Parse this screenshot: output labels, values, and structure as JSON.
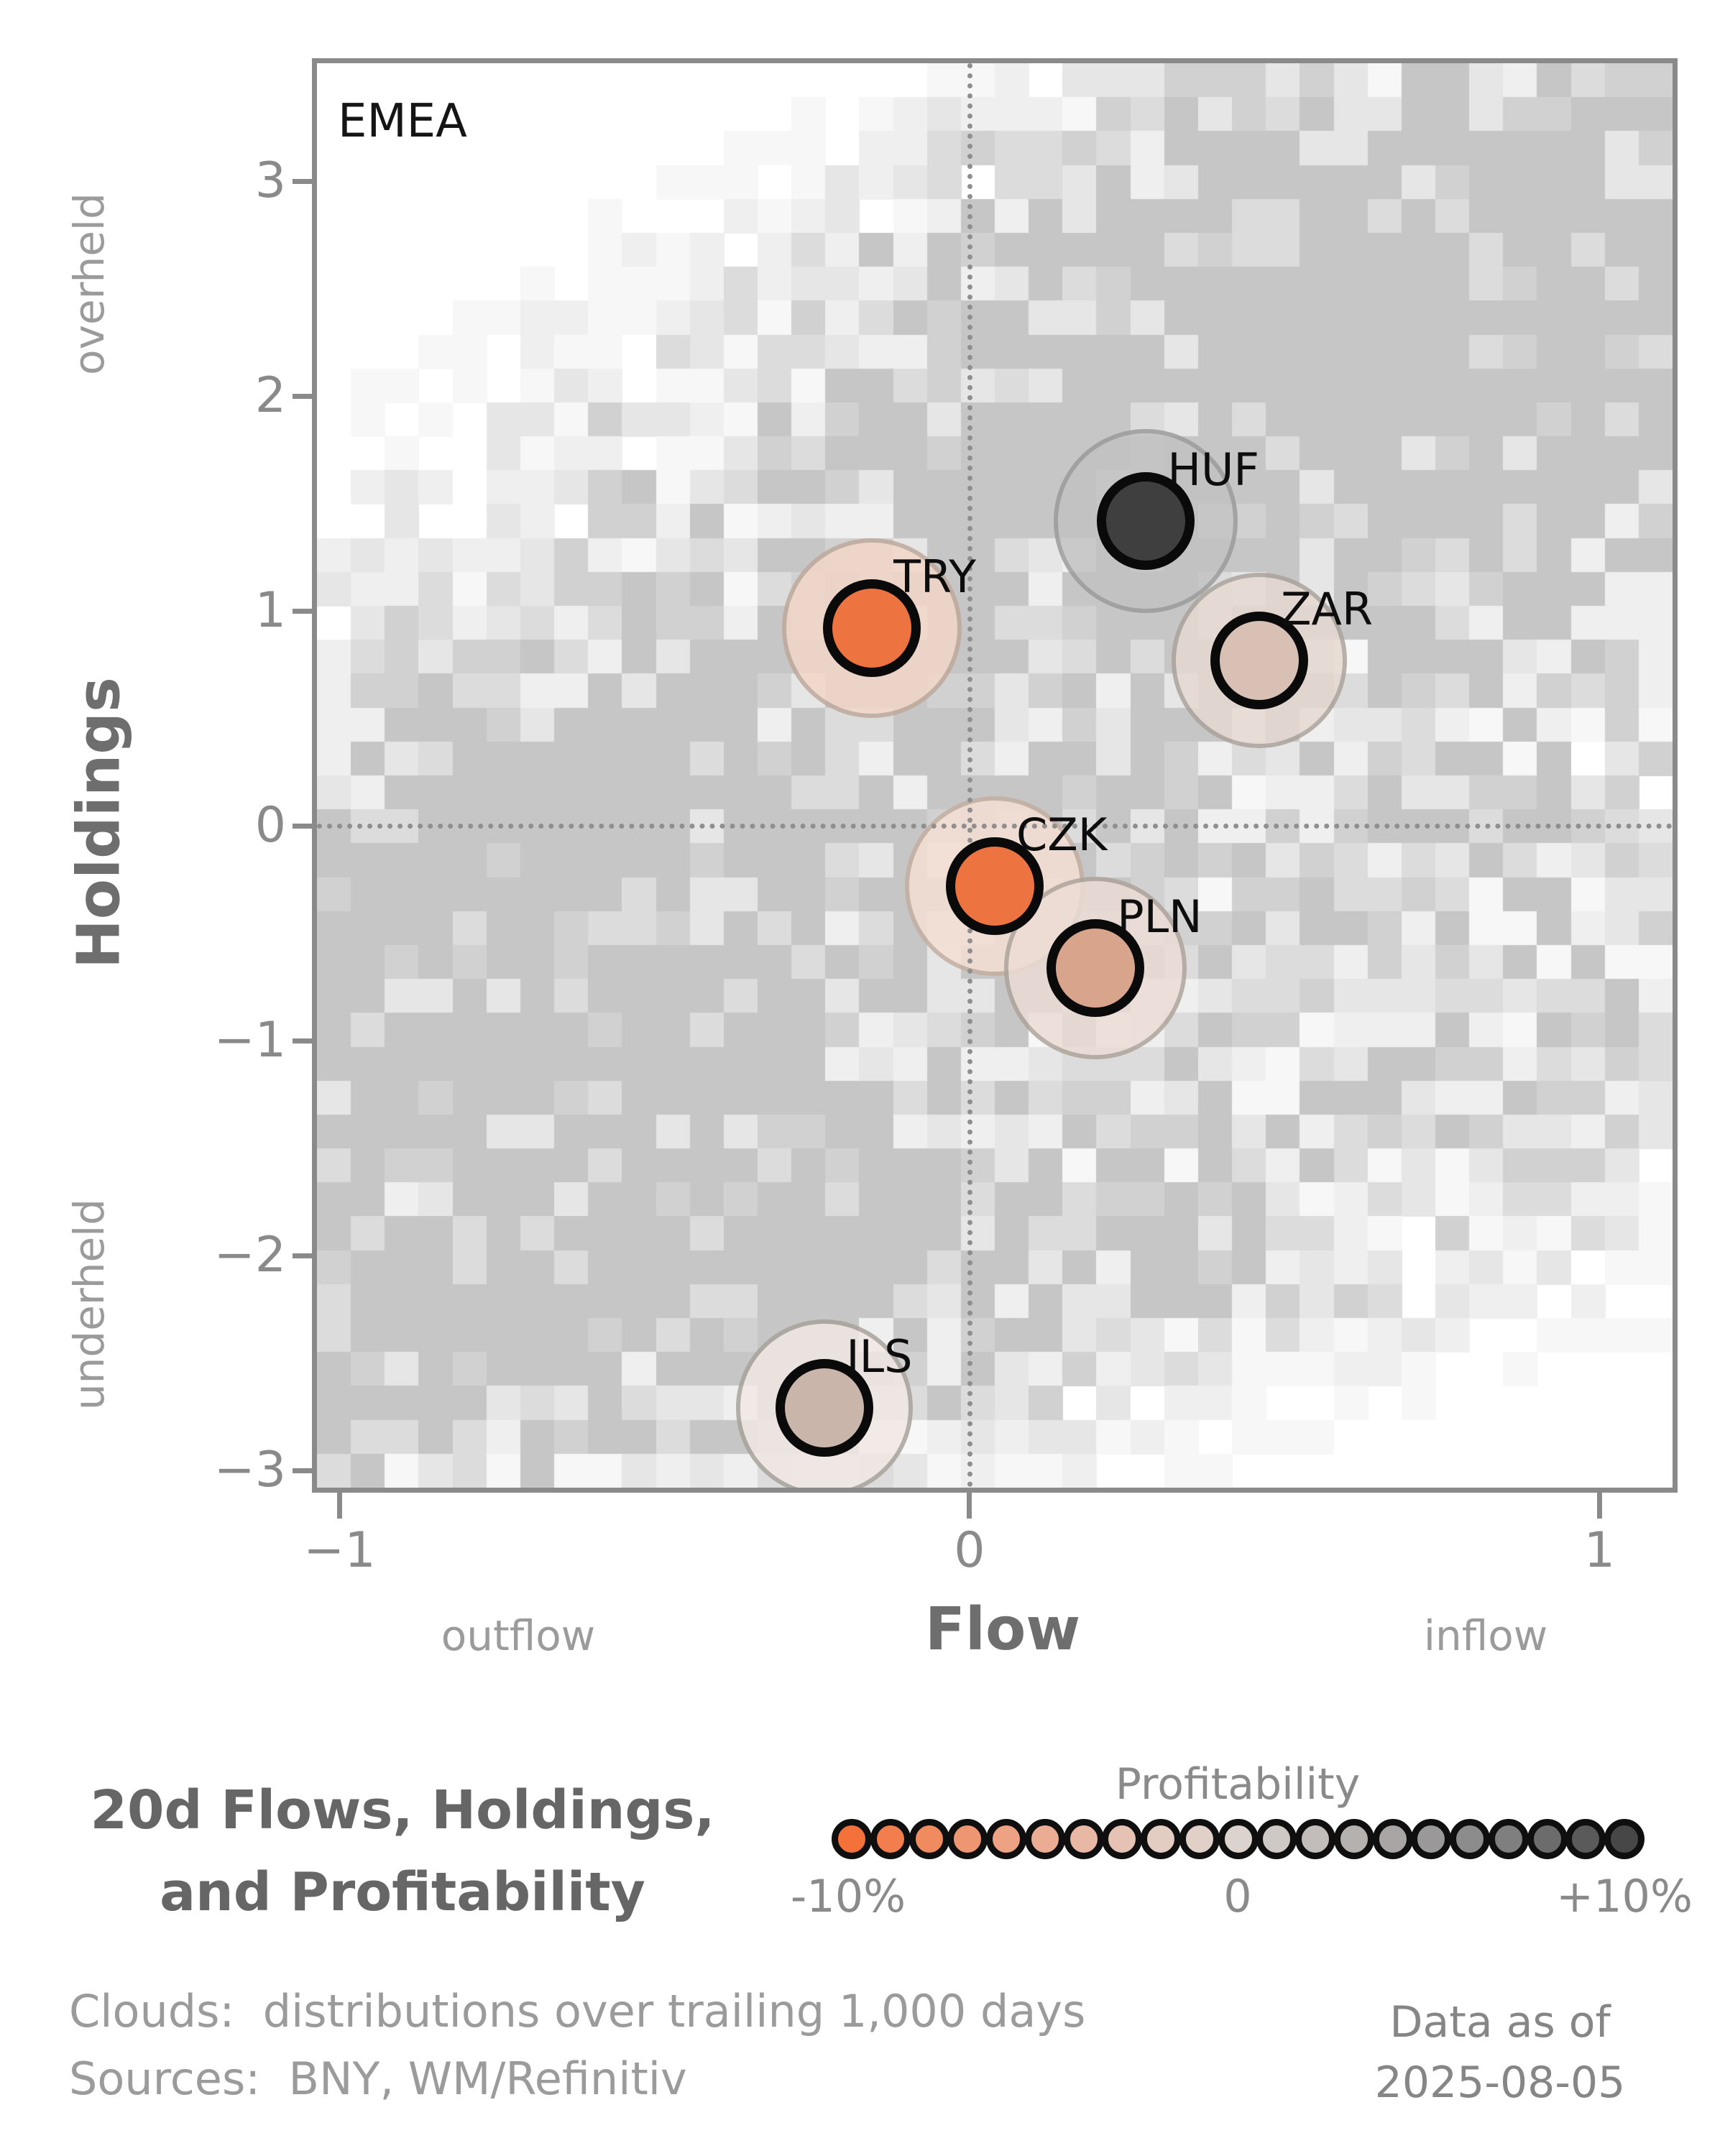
{
  "panel_label": "EMEA",
  "axes": {
    "x": {
      "title": "Flow",
      "left_hint": "outflow",
      "right_hint": "inflow",
      "min": -1.036,
      "max": 1.116,
      "ticks": [
        {
          "value": -1,
          "label": "−1"
        },
        {
          "value": 0,
          "label": "0"
        },
        {
          "value": 1,
          "label": "1"
        }
      ]
    },
    "y": {
      "title": "Holdings",
      "top_hint": "overheld",
      "bottom_hint": "underheld",
      "min": -3.08,
      "max": 3.55,
      "ticks": [
        {
          "value": 3,
          "label": "3"
        },
        {
          "value": 2,
          "label": "2"
        },
        {
          "value": 1,
          "label": "1"
        },
        {
          "value": 0,
          "label": "0"
        },
        {
          "value": -1,
          "label": "−1"
        },
        {
          "value": -2,
          "label": "−2"
        },
        {
          "value": -3,
          "label": "−3"
        }
      ]
    }
  },
  "chart_data": {
    "type": "scatter",
    "xlabel": "Flow",
    "ylabel": "Holdings",
    "xlim": [
      -1.036,
      1.116
    ],
    "ylim": [
      -3.08,
      3.55
    ],
    "points": [
      {
        "label": "TRY",
        "flow": -0.155,
        "holdings": 0.92,
        "marker_color": "#ED7340",
        "cloud_fill": "#F2D7C7",
        "cloud_edge": "#BFA89B",
        "cloud_r": 125
      },
      {
        "label": "HUF",
        "flow": 0.28,
        "holdings": 1.42,
        "marker_color": "#3F3F3F",
        "cloud_fill": "#C2C2C2",
        "cloud_edge": "#9A9A9A",
        "cloud_r": 128
      },
      {
        "label": "ZAR",
        "flow": 0.46,
        "holdings": 0.77,
        "marker_color": "#D8C0B4",
        "cloud_fill": "#E5D8D1",
        "cloud_edge": "#ABA29B",
        "cloud_r": 122
      },
      {
        "label": "CZK",
        "flow": 0.04,
        "holdings": -0.28,
        "marker_color": "#ED7440",
        "cloud_fill": "#F5DFD3",
        "cloud_edge": "#C4AEA1",
        "cloud_r": 125
      },
      {
        "label": "PLN",
        "flow": 0.2,
        "holdings": -0.66,
        "marker_color": "#D9A48C",
        "cloud_fill": "#EBDCD4",
        "cloud_edge": "#ACA29A",
        "cloud_r": 127
      },
      {
        "label": "ILS",
        "flow": -0.23,
        "holdings": -2.71,
        "marker_color": "#CAB5AB",
        "cloud_fill": "#F0E8E4",
        "cloud_edge": "#A8A19B",
        "cloud_r": 123
      }
    ],
    "background": {
      "description": "2D histogram cloud of trailing 1,000-day flow/holdings distribution, gray cells",
      "grid": {
        "cols": 40,
        "rows": 42
      },
      "seed": 11,
      "band": {
        "slope": 1.9,
        "intercept": 0.3,
        "halfwidth": 3.2,
        "falloff": 2.2,
        "weight": 0.52
      },
      "clusters": [
        {
          "x": 0.55,
          "y": 2.7,
          "sx": 0.42,
          "sy": 0.55,
          "w": 0.55
        },
        {
          "x": 0.05,
          "y": 1.9,
          "sx": 0.5,
          "sy": 0.5,
          "w": 0.35
        },
        {
          "x": -0.82,
          "y": -0.7,
          "sx": 0.28,
          "sy": 0.85,
          "w": 0.5
        },
        {
          "x": -0.52,
          "y": -2.35,
          "sx": 0.42,
          "sy": 0.5,
          "w": 0.55
        },
        {
          "x": 0.12,
          "y": -1.9,
          "sx": 0.55,
          "sy": 0.5,
          "w": 0.45
        },
        {
          "x": 0.88,
          "y": -0.8,
          "sx": 0.3,
          "sy": 0.65,
          "w": 0.4
        },
        {
          "x": 0.9,
          "y": 2.1,
          "sx": 0.5,
          "sy": 0.8,
          "w": 0.38
        },
        {
          "x": -0.3,
          "y": 0.2,
          "sx": 0.5,
          "sy": 0.8,
          "w": 0.3
        }
      ],
      "levels": [
        {
          "t": 0.6,
          "c": "#c6c6c6"
        },
        {
          "t": 0.47,
          "c": "#d1d1d1"
        },
        {
          "t": 0.36,
          "c": "#dcdcdc"
        },
        {
          "t": 0.26,
          "c": "#e6e6e6"
        },
        {
          "t": 0.17,
          "c": "#efefef"
        },
        {
          "t": 0.105,
          "c": "#f7f7f7"
        }
      ]
    }
  },
  "legend": {
    "title": "Profitability",
    "min_label": "-10%",
    "mid_label": "0",
    "max_label": "+10%",
    "colors": [
      "#F4713A",
      "#F27E4D",
      "#F08A5F",
      "#EE9671",
      "#ECA283",
      "#EAAD94",
      "#E8B8A4",
      "#E5C2B3",
      "#E3CCC1",
      "#E0D0C8",
      "#DDD3CE",
      "#CFC9C5",
      "#C2BDBA",
      "#B5B1AF",
      "#A8A5A4",
      "#9A9898",
      "#8D8C8C",
      "#7F7F7F",
      "#6C6C6C",
      "#5A5A5A",
      "#474747"
    ]
  },
  "title_block": {
    "line1": "20d Flows, Holdings,",
    "line2": "and Profitability"
  },
  "footnotes": {
    "clouds": "Clouds:  distributions over trailing 1,000 days",
    "sources": "Sources:  BNY, WM/Refinitiv"
  },
  "asof": {
    "line1": "Data as of",
    "line2": "2025-08-05"
  },
  "colors": {
    "accent_orange": "#ED7340",
    "dark_gray": "#3F3F3F",
    "axis_gray": "#8a8a8a",
    "hint_gray": "#9b9b9b"
  }
}
